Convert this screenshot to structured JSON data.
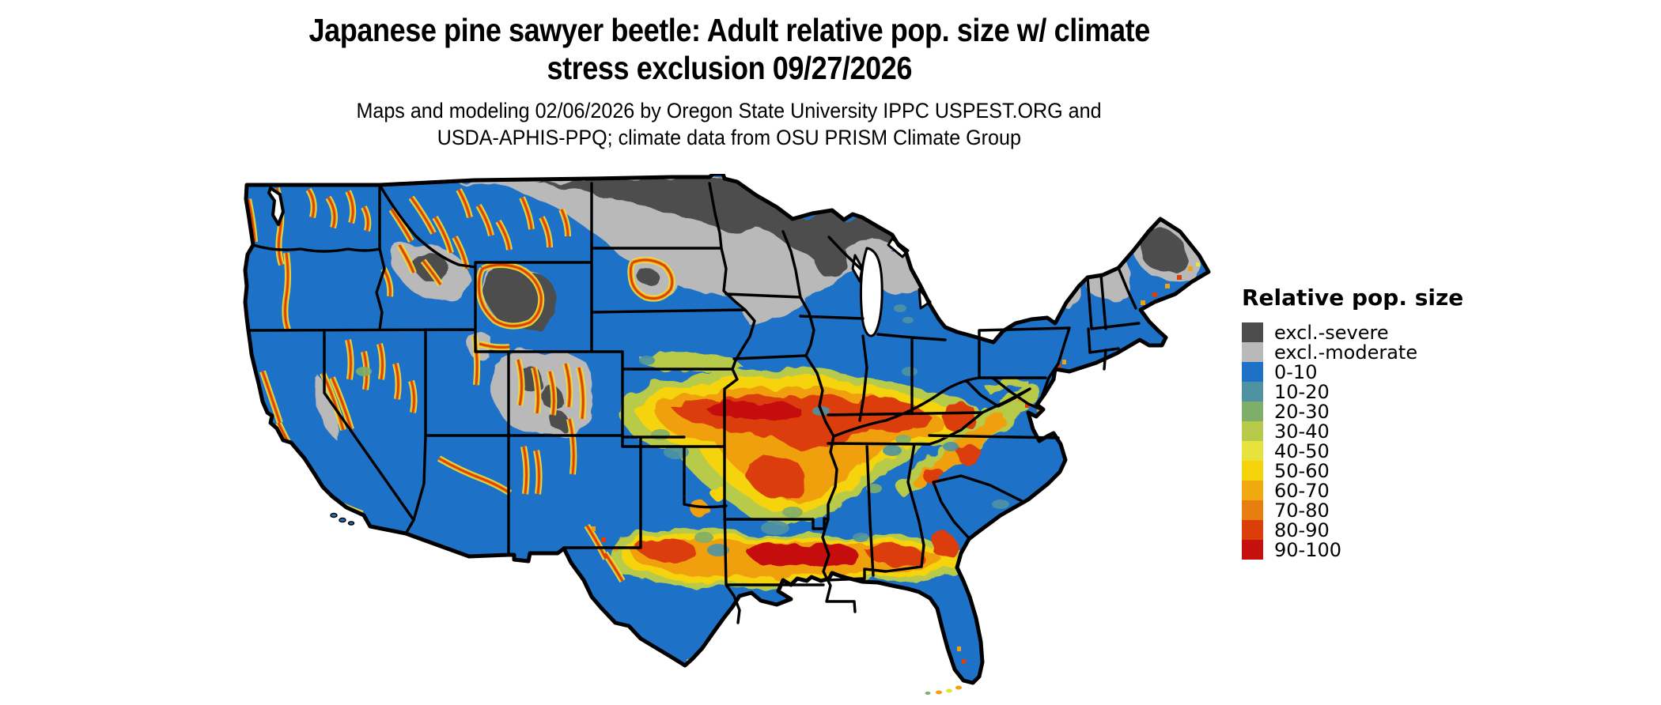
{
  "title": {
    "line1": "Japanese pine sawyer beetle: Adult relative pop. size w/ climate",
    "line2": "stress exclusion 09/27/2026"
  },
  "subtitle": {
    "line1": "Maps and modeling 02/06/2026 by Oregon State University IPPC USPEST.ORG and",
    "line2": "USDA-APHIS-PPQ; climate data from OSU PRISM Climate Group"
  },
  "legend": {
    "title": "Relative pop. size",
    "items": [
      {
        "label": "excl.-severe",
        "color": "#4d4d4d"
      },
      {
        "label": "excl.-moderate",
        "color": "#b9b9b9"
      },
      {
        "label": "0-10",
        "color": "#1d72c8"
      },
      {
        "label": "10-20",
        "color": "#4f93a3"
      },
      {
        "label": "20-30",
        "color": "#7fae6a"
      },
      {
        "label": "30-40",
        "color": "#b8ca4a"
      },
      {
        "label": "40-50",
        "color": "#e8e23c"
      },
      {
        "label": "50-60",
        "color": "#f5d30c"
      },
      {
        "label": "60-70",
        "color": "#f2a90f"
      },
      {
        "label": "70-80",
        "color": "#e97e10"
      },
      {
        "label": "80-90",
        "color": "#dc3e09"
      },
      {
        "label": "90-100",
        "color": "#c5100d"
      }
    ]
  },
  "chart_data": {
    "type": "heatmap",
    "title": "Japanese pine sawyer beetle: Adult relative pop. size w/ climate stress exclusion 09/27/2026",
    "region": "Continental United States",
    "categories": [
      "excl.-severe",
      "excl.-moderate",
      "0-10",
      "10-20",
      "20-30",
      "30-40",
      "40-50",
      "50-60",
      "60-70",
      "70-80",
      "80-90",
      "90-100"
    ],
    "colors": [
      "#4d4d4d",
      "#b9b9b9",
      "#1d72c8",
      "#4f93a3",
      "#7fae6a",
      "#b8ca4a",
      "#e8e23c",
      "#f5d30c",
      "#f2a90f",
      "#e97e10",
      "#dc3e09",
      "#c5100d"
    ],
    "legend_position": "right",
    "notes_visible_regions": [
      "Most of US mapped 0-10 (blue)",
      "excl.-severe dark gray across ND, northern MN/WI/MI, interior Maine, high Rockies",
      "excl.-moderate light gray band across MT, SD, southern MN/WI, northern lower MI, northern New England",
      "High values 70-100 (red) along western mountain ranges, central band KS-MO-KY, Gulf band central TX-LA-MS-AL-GA, southern Appalachians"
    ]
  }
}
